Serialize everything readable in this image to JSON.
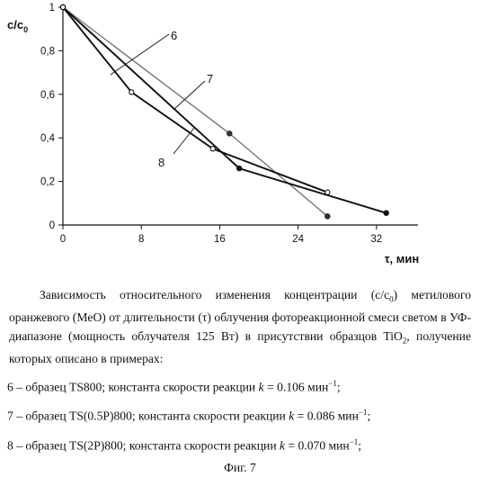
{
  "chart_data": {
    "type": "line",
    "ylabel_main": "c/c",
    "ylabel_sub": "0",
    "xlabel": "τ, мин",
    "xlim": [
      0,
      34
    ],
    "ylim": [
      0,
      1
    ],
    "x_ticks": [
      0,
      8,
      16,
      24,
      32
    ],
    "x_tick_labels": [
      "0",
      "8",
      "16",
      "24",
      "32"
    ],
    "y_ticks": [
      0,
      0.2,
      0.4,
      0.6,
      0.8,
      1
    ],
    "y_tick_labels": [
      "0",
      "0,2",
      "0,4",
      "0,6",
      "0,8",
      "1"
    ],
    "grid": false,
    "series": [
      {
        "name": "6",
        "color": "#777777",
        "marker": "filled",
        "points": [
          [
            0,
            1
          ],
          [
            17,
            0.42
          ],
          [
            27,
            0.04
          ]
        ]
      },
      {
        "name": "7",
        "color": "#111111",
        "marker": "filled",
        "points": [
          [
            0,
            1
          ],
          [
            18,
            0.26
          ],
          [
            33,
            0.055
          ]
        ]
      },
      {
        "name": "8",
        "color": "#111111",
        "marker": "hollow",
        "points": [
          [
            0,
            1
          ],
          [
            7,
            0.61
          ],
          [
            15.3,
            0.35
          ],
          [
            27,
            0.15
          ]
        ]
      }
    ]
  },
  "caption": {
    "main_1": "Зависимость относительного изменения концентрации (c/c",
    "main_sub0": "0",
    "main_2": ") метилового оранжевого (MeO) от длительности (τ) облучения фотореакционной смеси светом в УФ-диапазоне (мощность облучателя 125 Вт) в присутствии образцов TiO",
    "main_sub2": "2",
    "main_3": ", получение которых описано в примерах:",
    "line6_pre": "6 – образец TS800; константа скорости реакции ",
    "line7_pre": "7 – образец TS(0.5P)800; константа скорости реакции ",
    "line8_pre": "8 – образец TS(2P)800; константа скорости реакции ",
    "k_symbol": "k",
    "line6_val": " = 0.106 мин",
    "line7_val": " = 0.086 мин",
    "line8_val": " = 0.070 мин",
    "exp": "−1",
    "line_end": ";",
    "figure": "Фиг. 7"
  }
}
